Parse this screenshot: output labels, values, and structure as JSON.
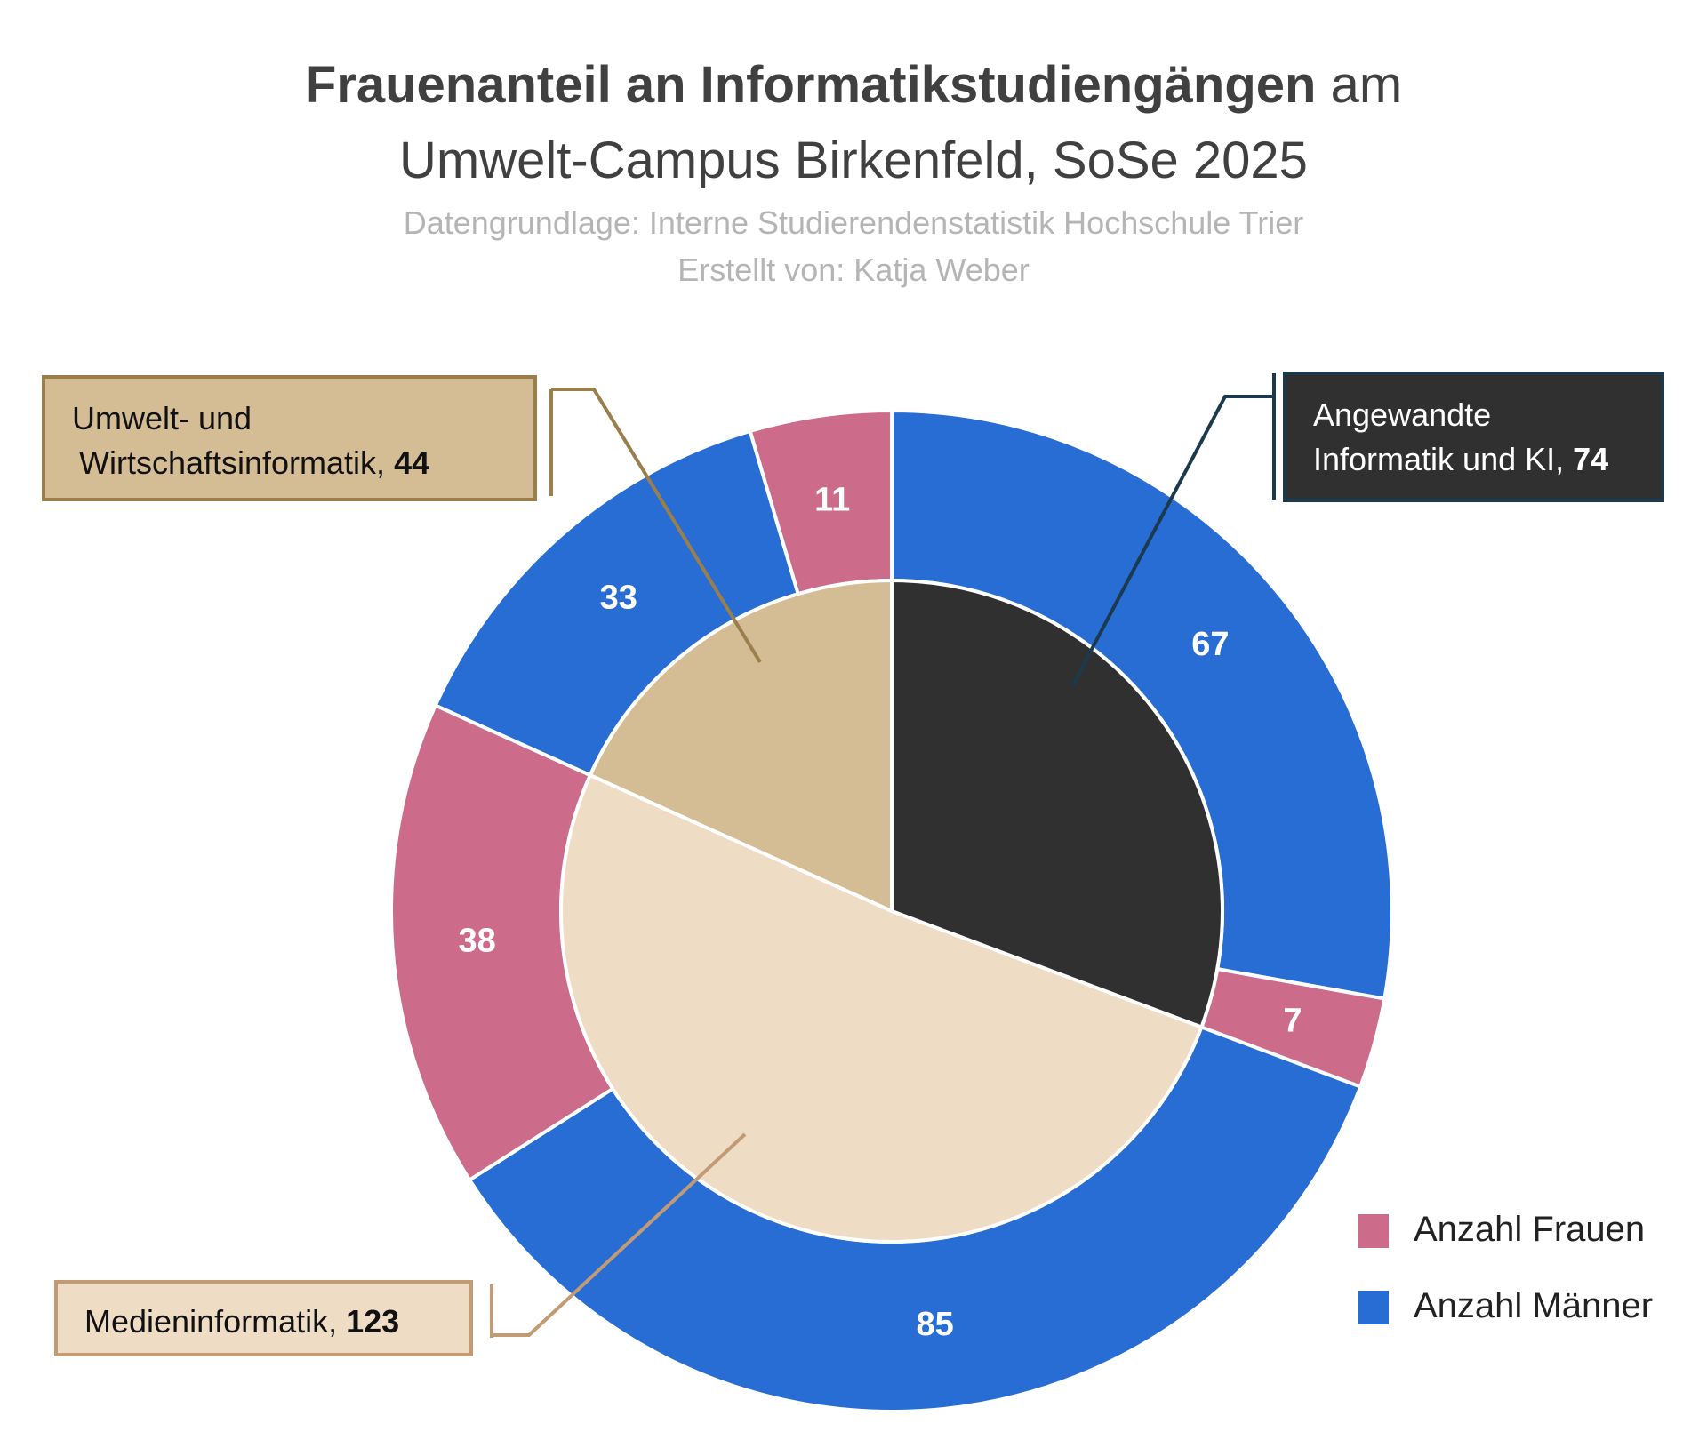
{
  "header": {
    "title_bold": "Frauenanteil an Informatikstudiengängen",
    "title_rest": "am",
    "title_line2": "Umwelt-Campus Birkenfeld, SoSe 2025",
    "source": "Datengrundlage: Interne Studierendenstatistik Hochschule Trier",
    "author": "Erstellt von: Katja Weber"
  },
  "colors": {
    "frauen": "#cc6b8a",
    "maenner": "#276dd4",
    "angewandte": "#303030",
    "medien": "#efdcc5",
    "umwelt": "#d4bd95"
  },
  "chart_data": {
    "type": "pie",
    "subtype": "nested-donut",
    "title": "Frauenanteil an Informatikstudiengängen am Umwelt-Campus Birkenfeld, SoSe 2025",
    "inner_ring": {
      "categories": [
        "Angewandte Informatik und KI",
        "Medieninformatik",
        "Umwelt- und Wirtschaftsinformatik"
      ],
      "values": [
        74,
        123,
        44
      ],
      "colors": [
        "#303030",
        "#efdcc5",
        "#d4bd95"
      ]
    },
    "outer_ring": {
      "segments": [
        {
          "course": "Angewandte Informatik und KI",
          "series": "Anzahl Männer",
          "value": 67
        },
        {
          "course": "Angewandte Informatik und KI",
          "series": "Anzahl Frauen",
          "value": 7
        },
        {
          "course": "Medieninformatik",
          "series": "Anzahl Männer",
          "value": 85
        },
        {
          "course": "Medieninformatik",
          "series": "Anzahl Frauen",
          "value": 38
        },
        {
          "course": "Umwelt- und Wirtschaftsinformatik",
          "series": "Anzahl Männer",
          "value": 33
        },
        {
          "course": "Umwelt- und Wirtschaftsinformatik",
          "series": "Anzahl Frauen",
          "value": 11
        }
      ]
    },
    "series": [
      {
        "name": "Anzahl Frauen",
        "values": [
          7,
          38,
          11
        ]
      },
      {
        "name": "Anzahl Männer",
        "values": [
          67,
          85,
          33
        ]
      }
    ],
    "legend_position": "bottom-right"
  },
  "callouts": {
    "umwelt": {
      "line1": "Umwelt- und",
      "line2": "Wirtschaftsinformatik,",
      "value": "44"
    },
    "angewandte": {
      "line1": "Angewandte",
      "line2": "Informatik und KI,",
      "value": "74"
    },
    "medien": {
      "label": "Medieninformatik,",
      "value": "123"
    }
  },
  "legend": [
    {
      "label": "Anzahl Frauen",
      "color": "#cc6b8a"
    },
    {
      "label": "Anzahl Männer",
      "color": "#276dd4"
    }
  ]
}
